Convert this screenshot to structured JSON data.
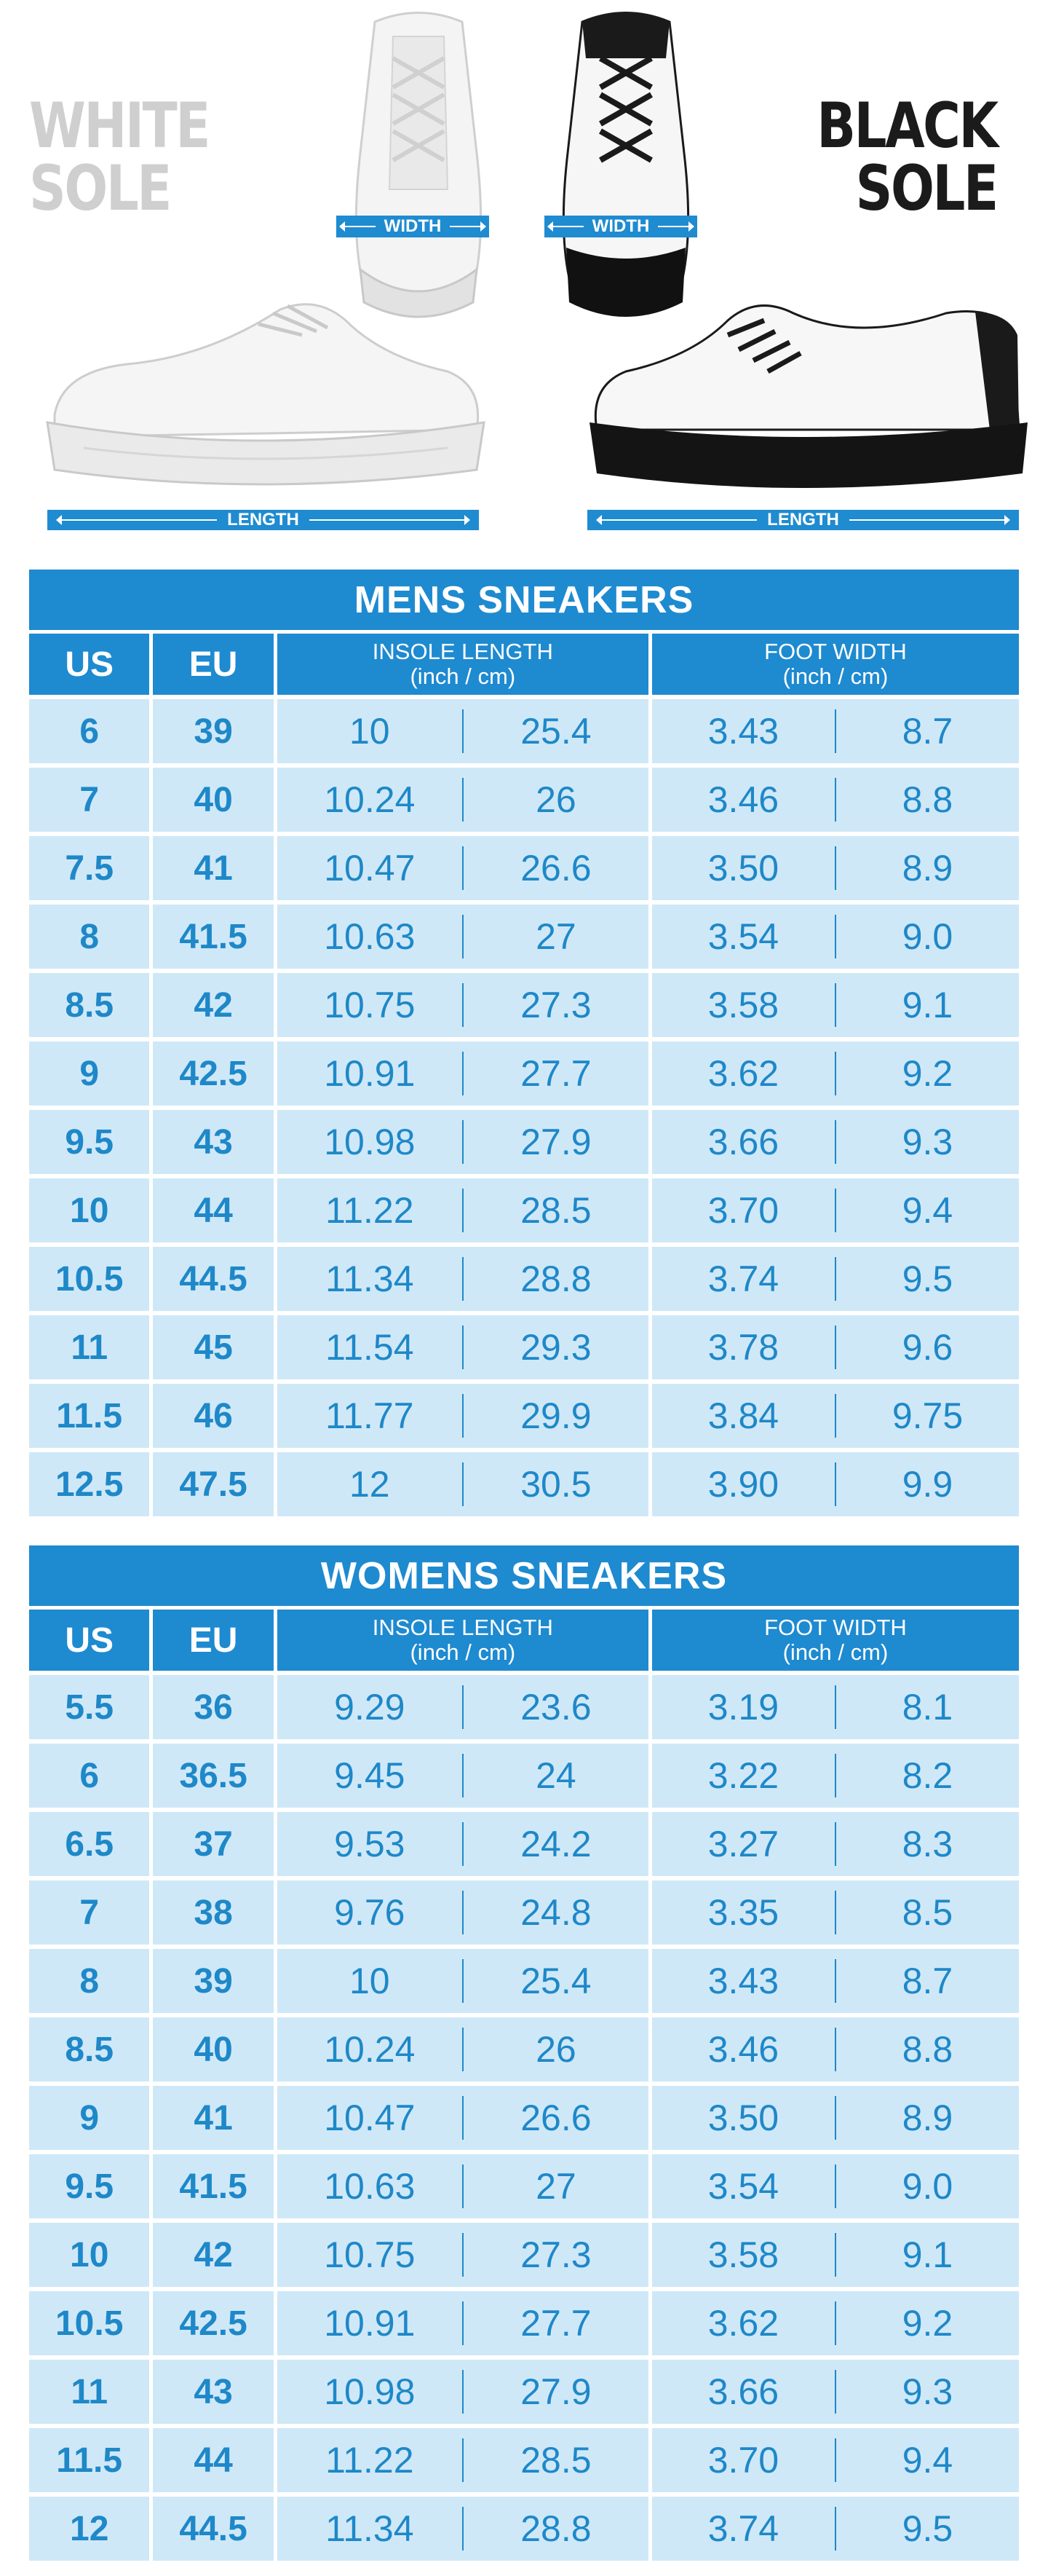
{
  "illustration": {
    "white_sole_label": [
      "WHITE",
      "SOLE"
    ],
    "black_sole_label": [
      "BLACK",
      "SOLE"
    ],
    "width_label": "WIDTH",
    "length_label": "LENGTH"
  },
  "colors": {
    "accent": "#1e8ad0",
    "cell_bg": "#cfe8f8",
    "cell_text": "#1e88c8"
  },
  "mens": {
    "title": "MENS SNEAKERS",
    "headers": {
      "us": "US",
      "eu": "EU",
      "insole": [
        "INSOLE LENGTH",
        "(inch / cm)"
      ],
      "foot": [
        "FOOT WIDTH",
        "(inch / cm)"
      ]
    },
    "rows": [
      {
        "us": "6",
        "eu": "39",
        "in_inch": "10",
        "in_cm": "25.4",
        "fw_inch": "3.43",
        "fw_cm": "8.7"
      },
      {
        "us": "7",
        "eu": "40",
        "in_inch": "10.24",
        "in_cm": "26",
        "fw_inch": "3.46",
        "fw_cm": "8.8"
      },
      {
        "us": "7.5",
        "eu": "41",
        "in_inch": "10.47",
        "in_cm": "26.6",
        "fw_inch": "3.50",
        "fw_cm": "8.9"
      },
      {
        "us": "8",
        "eu": "41.5",
        "in_inch": "10.63",
        "in_cm": "27",
        "fw_inch": "3.54",
        "fw_cm": "9.0"
      },
      {
        "us": "8.5",
        "eu": "42",
        "in_inch": "10.75",
        "in_cm": "27.3",
        "fw_inch": "3.58",
        "fw_cm": "9.1"
      },
      {
        "us": "9",
        "eu": "42.5",
        "in_inch": "10.91",
        "in_cm": "27.7",
        "fw_inch": "3.62",
        "fw_cm": "9.2"
      },
      {
        "us": "9.5",
        "eu": "43",
        "in_inch": "10.98",
        "in_cm": "27.9",
        "fw_inch": "3.66",
        "fw_cm": "9.3"
      },
      {
        "us": "10",
        "eu": "44",
        "in_inch": "11.22",
        "in_cm": "28.5",
        "fw_inch": "3.70",
        "fw_cm": "9.4"
      },
      {
        "us": "10.5",
        "eu": "44.5",
        "in_inch": "11.34",
        "in_cm": "28.8",
        "fw_inch": "3.74",
        "fw_cm": "9.5"
      },
      {
        "us": "11",
        "eu": "45",
        "in_inch": "11.54",
        "in_cm": "29.3",
        "fw_inch": "3.78",
        "fw_cm": "9.6"
      },
      {
        "us": "11.5",
        "eu": "46",
        "in_inch": "11.77",
        "in_cm": "29.9",
        "fw_inch": "3.84",
        "fw_cm": "9.75"
      },
      {
        "us": "12.5",
        "eu": "47.5",
        "in_inch": "12",
        "in_cm": "30.5",
        "fw_inch": "3.90",
        "fw_cm": "9.9"
      }
    ]
  },
  "womens": {
    "title": "WOMENS SNEAKERS",
    "headers": {
      "us": "US",
      "eu": "EU",
      "insole": [
        "INSOLE LENGTH",
        "(inch / cm)"
      ],
      "foot": [
        "FOOT WIDTH",
        "(inch / cm)"
      ]
    },
    "rows": [
      {
        "us": "5.5",
        "eu": "36",
        "in_inch": "9.29",
        "in_cm": "23.6",
        "fw_inch": "3.19",
        "fw_cm": "8.1"
      },
      {
        "us": "6",
        "eu": "36.5",
        "in_inch": "9.45",
        "in_cm": "24",
        "fw_inch": "3.22",
        "fw_cm": "8.2"
      },
      {
        "us": "6.5",
        "eu": "37",
        "in_inch": "9.53",
        "in_cm": "24.2",
        "fw_inch": "3.27",
        "fw_cm": "8.3"
      },
      {
        "us": "7",
        "eu": "38",
        "in_inch": "9.76",
        "in_cm": "24.8",
        "fw_inch": "3.35",
        "fw_cm": "8.5"
      },
      {
        "us": "8",
        "eu": "39",
        "in_inch": "10",
        "in_cm": "25.4",
        "fw_inch": "3.43",
        "fw_cm": "8.7"
      },
      {
        "us": "8.5",
        "eu": "40",
        "in_inch": "10.24",
        "in_cm": "26",
        "fw_inch": "3.46",
        "fw_cm": "8.8"
      },
      {
        "us": "9",
        "eu": "41",
        "in_inch": "10.47",
        "in_cm": "26.6",
        "fw_inch": "3.50",
        "fw_cm": "8.9"
      },
      {
        "us": "9.5",
        "eu": "41.5",
        "in_inch": "10.63",
        "in_cm": "27",
        "fw_inch": "3.54",
        "fw_cm": "9.0"
      },
      {
        "us": "10",
        "eu": "42",
        "in_inch": "10.75",
        "in_cm": "27.3",
        "fw_inch": "3.58",
        "fw_cm": "9.1"
      },
      {
        "us": "10.5",
        "eu": "42.5",
        "in_inch": "10.91",
        "in_cm": "27.7",
        "fw_inch": "3.62",
        "fw_cm": "9.2"
      },
      {
        "us": "11",
        "eu": "43",
        "in_inch": "10.98",
        "in_cm": "27.9",
        "fw_inch": "3.66",
        "fw_cm": "9.3"
      },
      {
        "us": "11.5",
        "eu": "44",
        "in_inch": "11.22",
        "in_cm": "28.5",
        "fw_inch": "3.70",
        "fw_cm": "9.4"
      },
      {
        "us": "12",
        "eu": "44.5",
        "in_inch": "11.34",
        "in_cm": "28.8",
        "fw_inch": "3.74",
        "fw_cm": "9.5"
      }
    ]
  }
}
